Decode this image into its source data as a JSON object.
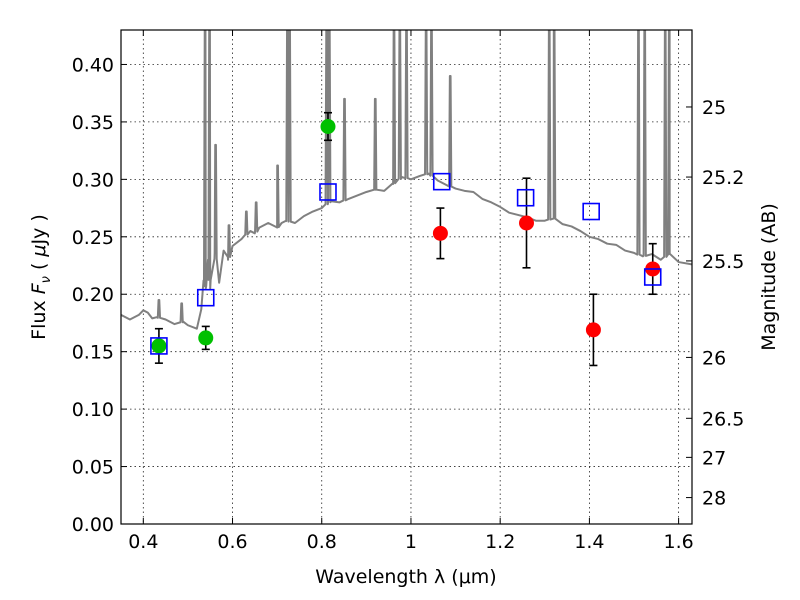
{
  "chart_data": {
    "type": "scatter",
    "xlabel": "Wavelength  λ (μm)",
    "ylabel_parts": [
      "Flux  ",
      "F",
      "ν",
      "  ( ",
      "μ",
      "Jy )"
    ],
    "ylabel_right": "Magnitude (AB)",
    "xlim": [
      0.35,
      1.63
    ],
    "ylim": [
      0.0,
      0.43
    ],
    "grid": true,
    "x_ticks": [
      0.4,
      0.6,
      0.8,
      1.0,
      1.2,
      1.4,
      1.6
    ],
    "x_tick_labels": [
      "0.4",
      "0.6",
      "0.8",
      "1",
      "1.2",
      "1.4",
      "1.6"
    ],
    "y_ticks": [
      0.0,
      0.05,
      0.1,
      0.15,
      0.2,
      0.25,
      0.3,
      0.35,
      0.4
    ],
    "y_tick_labels": [
      "0.00",
      "0.05",
      "0.10",
      "0.15",
      "0.20",
      "0.25",
      "0.30",
      "0.35",
      "0.40"
    ],
    "right_ticks": [
      {
        "label": "25",
        "flux": 0.363
      },
      {
        "label": "25.2",
        "flux": 0.302
      },
      {
        "label": "25.5",
        "flux": 0.229
      },
      {
        "label": "26",
        "flux": 0.145
      },
      {
        "label": "26.5",
        "flux": 0.092
      },
      {
        "label": "27",
        "flux": 0.058
      },
      {
        "label": "28",
        "flux": 0.023
      }
    ],
    "colors": {
      "model": "#808080",
      "green_points": "#00c000",
      "red_points": "#ff0000",
      "squares": "#0000ff",
      "errorbars": "#000000"
    },
    "series": [
      {
        "marker": "circle",
        "color": "green",
        "points": [
          {
            "x": 0.435,
            "y": 0.155,
            "err": 0.015
          },
          {
            "x": 0.54,
            "y": 0.162,
            "err": 0.01
          },
          {
            "x": 0.814,
            "y": 0.346,
            "err": 0.012
          }
        ]
      },
      {
        "marker": "circle",
        "color": "red",
        "points": [
          {
            "x": 1.066,
            "y": 0.253,
            "err": 0.022
          },
          {
            "x": 1.259,
            "y": 0.262,
            "err": 0.039
          },
          {
            "x": 1.409,
            "y": 0.169,
            "err": 0.031
          },
          {
            "x": 1.542,
            "y": 0.222,
            "err": 0.022
          }
        ]
      },
      {
        "marker": "open-square",
        "color": "blue",
        "points": [
          {
            "x": 0.435,
            "y": 0.155
          },
          {
            "x": 0.54,
            "y": 0.197
          },
          {
            "x": 0.814,
            "y": 0.289
          },
          {
            "x": 1.069,
            "y": 0.298
          },
          {
            "x": 1.257,
            "y": 0.284
          },
          {
            "x": 1.404,
            "y": 0.272
          },
          {
            "x": 1.542,
            "y": 0.215
          }
        ]
      }
    ],
    "model_spectrum": {
      "x": [
        0.35,
        0.37,
        0.39,
        0.4,
        0.41,
        0.42,
        0.43,
        0.45,
        0.47,
        0.49,
        0.5,
        0.52,
        0.53,
        0.535,
        0.54,
        0.545,
        0.55,
        0.56,
        0.57,
        0.58,
        0.59,
        0.6,
        0.62,
        0.64,
        0.65,
        0.66,
        0.68,
        0.7,
        0.71,
        0.72,
        0.74,
        0.76,
        0.78,
        0.8,
        0.82,
        0.84,
        0.86,
        0.88,
        0.9,
        0.92,
        0.94,
        0.96,
        0.98,
        1.0,
        1.02,
        1.04,
        1.06,
        1.08,
        1.1,
        1.12,
        1.14,
        1.16,
        1.18,
        1.2,
        1.22,
        1.24,
        1.26,
        1.28,
        1.3,
        1.32,
        1.34,
        1.36,
        1.38,
        1.4,
        1.42,
        1.44,
        1.46,
        1.48,
        1.5,
        1.52,
        1.54,
        1.56,
        1.58,
        1.6,
        1.63
      ],
      "y": [
        0.182,
        0.178,
        0.182,
        0.186,
        0.184,
        0.179,
        0.18,
        0.178,
        0.174,
        0.176,
        0.173,
        0.17,
        0.187,
        0.212,
        0.205,
        0.23,
        0.205,
        0.236,
        0.21,
        0.238,
        0.23,
        0.242,
        0.248,
        0.255,
        0.253,
        0.258,
        0.262,
        0.258,
        0.262,
        0.264,
        0.262,
        0.268,
        0.272,
        0.275,
        0.281,
        0.28,
        0.283,
        0.286,
        0.289,
        0.291,
        0.29,
        0.296,
        0.302,
        0.3,
        0.303,
        0.305,
        0.299,
        0.295,
        0.292,
        0.29,
        0.289,
        0.283,
        0.28,
        0.276,
        0.271,
        0.269,
        0.267,
        0.264,
        0.264,
        0.266,
        0.261,
        0.259,
        0.255,
        0.25,
        0.248,
        0.244,
        0.243,
        0.238,
        0.236,
        0.233,
        0.235,
        0.23,
        0.235,
        0.228,
        0.226
      ]
    },
    "emission_lines": [
      {
        "x": 0.435,
        "peak": 0.195
      },
      {
        "x": 0.486,
        "peak": 0.192
      },
      {
        "x": 0.5385,
        "peak": 0.43
      },
      {
        "x": 0.5485,
        "peak": 0.43
      },
      {
        "x": 0.562,
        "peak": 0.33
      },
      {
        "x": 0.592,
        "peak": 0.26
      },
      {
        "x": 0.631,
        "peak": 0.272
      },
      {
        "x": 0.653,
        "peak": 0.28
      },
      {
        "x": 0.701,
        "peak": 0.312
      },
      {
        "x": 0.723,
        "peak": 0.43
      },
      {
        "x": 0.728,
        "peak": 0.43
      },
      {
        "x": 0.811,
        "peak": 0.43
      },
      {
        "x": 0.817,
        "peak": 0.43
      },
      {
        "x": 0.851,
        "peak": 0.37
      },
      {
        "x": 0.92,
        "peak": 0.37
      },
      {
        "x": 0.962,
        "peak": 0.43
      },
      {
        "x": 0.975,
        "peak": 0.43
      },
      {
        "x": 0.99,
        "peak": 0.43
      },
      {
        "x": 1.034,
        "peak": 0.43
      },
      {
        "x": 1.046,
        "peak": 0.43
      },
      {
        "x": 1.088,
        "peak": 0.39
      },
      {
        "x": 1.31,
        "peak": 0.43
      },
      {
        "x": 1.321,
        "peak": 0.43
      },
      {
        "x": 1.51,
        "peak": 0.43
      },
      {
        "x": 1.524,
        "peak": 0.43
      },
      {
        "x": 1.57,
        "peak": 0.43
      },
      {
        "x": 1.579,
        "peak": 0.43
      }
    ]
  }
}
